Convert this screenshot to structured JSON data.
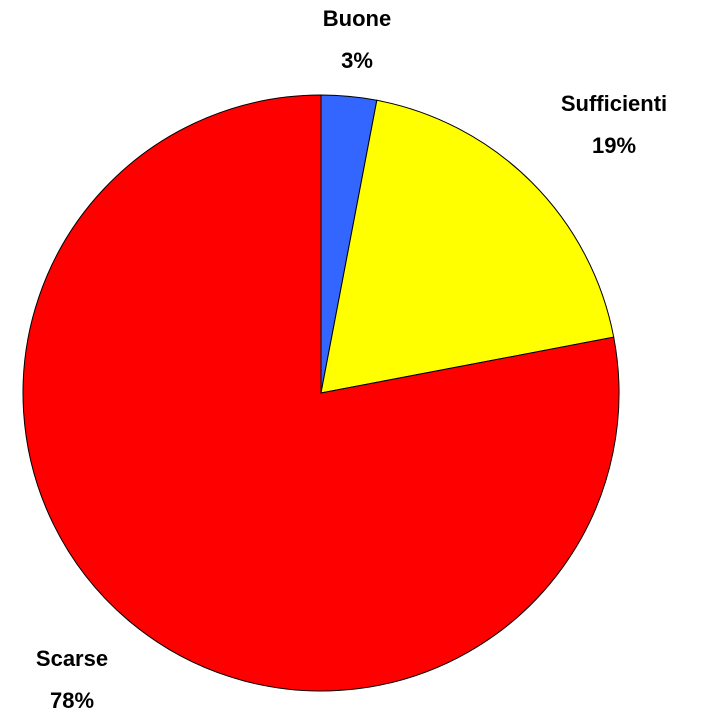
{
  "chart_data": {
    "type": "pie",
    "categories": [
      "Buone",
      "Sufficienti",
      "Scarse"
    ],
    "values": [
      3,
      19,
      78
    ],
    "value_labels": [
      "3%",
      "19%",
      "78%"
    ],
    "colors": [
      "#3366ff",
      "#ffff00",
      "#ff0000"
    ]
  }
}
